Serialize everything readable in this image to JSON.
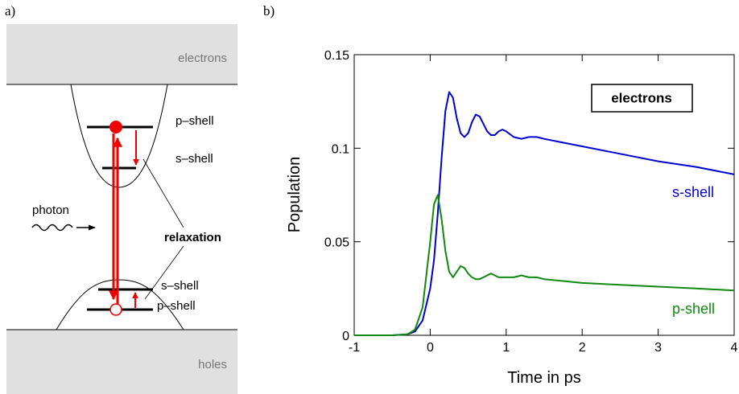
{
  "panel_a": {
    "label": "a)",
    "electrons": "electrons",
    "holes": "holes",
    "conduction_p": "p–shell",
    "conduction_s": "s–shell",
    "valence_s": "s–shell",
    "valence_p": "p–shell",
    "photon": "photon",
    "relaxation": "relaxation"
  },
  "chart_data": {
    "type": "line",
    "panel_label": "b)",
    "annotation": "electrons",
    "xlabel": "Time in ps",
    "ylabel": "Population",
    "x": [
      -1,
      -0.5,
      -0.3,
      -0.2,
      -0.1,
      0,
      0.05,
      0.1,
      0.15,
      0.2,
      0.25,
      0.3,
      0.35,
      0.4,
      0.45,
      0.5,
      0.55,
      0.6,
      0.65,
      0.7,
      0.75,
      0.8,
      0.85,
      0.9,
      0.95,
      1.0,
      1.1,
      1.2,
      1.3,
      1.4,
      1.5,
      1.75,
      2,
      2.5,
      3,
      3.5,
      4
    ],
    "series": [
      {
        "name": "s-shell",
        "color": "#0000cc",
        "values": [
          0,
          0,
          0.0005,
          0.002,
          0.008,
          0.025,
          0.04,
          0.065,
          0.095,
          0.12,
          0.13,
          0.127,
          0.116,
          0.108,
          0.106,
          0.108,
          0.114,
          0.118,
          0.117,
          0.113,
          0.109,
          0.107,
          0.107,
          0.109,
          0.11,
          0.109,
          0.106,
          0.105,
          0.106,
          0.106,
          0.105,
          0.103,
          0.101,
          0.097,
          0.093,
          0.09,
          0.086
        ]
      },
      {
        "name": "p-shell",
        "color": "#118811",
        "values": [
          0,
          0,
          0.0005,
          0.003,
          0.015,
          0.05,
          0.07,
          0.075,
          0.062,
          0.045,
          0.034,
          0.031,
          0.034,
          0.037,
          0.036,
          0.033,
          0.031,
          0.03,
          0.03,
          0.031,
          0.032,
          0.033,
          0.032,
          0.031,
          0.031,
          0.031,
          0.031,
          0.032,
          0.031,
          0.031,
          0.03,
          0.029,
          0.028,
          0.027,
          0.026,
          0.025,
          0.024
        ]
      }
    ],
    "xlim": [
      -1,
      4
    ],
    "xticks": [
      -1,
      0,
      1,
      2,
      3,
      4
    ],
    "ylim": [
      0,
      0.15
    ],
    "yticks": [
      0,
      0.05,
      0.1,
      0.15
    ],
    "grid": false
  }
}
